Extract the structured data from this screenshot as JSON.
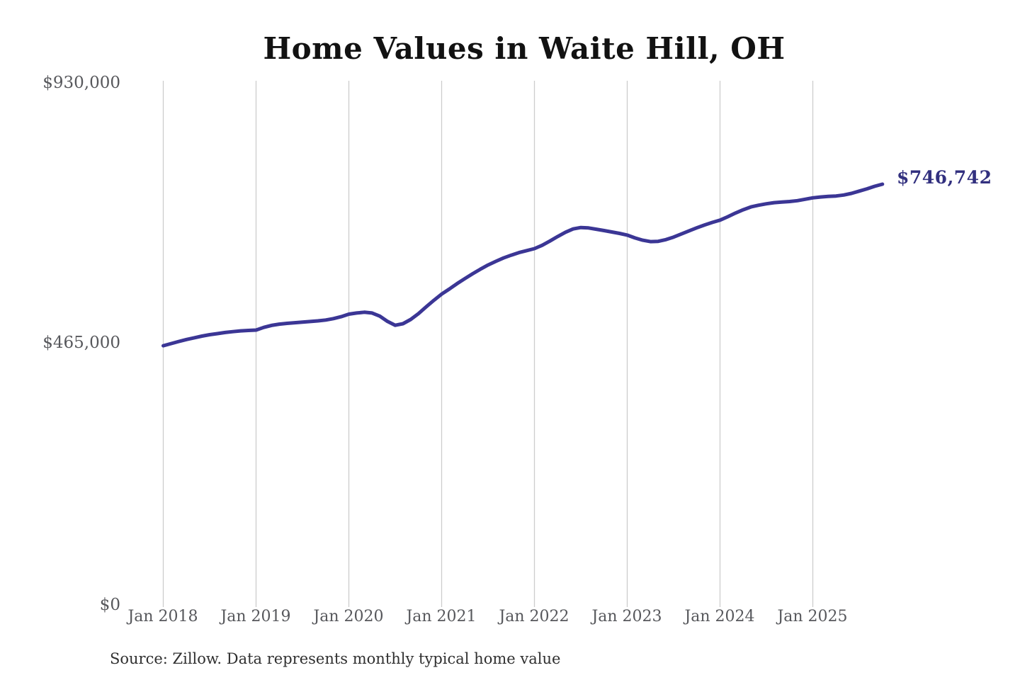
{
  "chart": {
    "title": "Home Values in Waite Hill, OH",
    "latest_value_label": "$746,742",
    "source_note": "Source: Zillow. Data represents monthly typical home value"
  },
  "chart_data": {
    "type": "line",
    "title": "Home Values in Waite Hill, OH",
    "series_name": "Monthly typical home value",
    "x_unit": "month",
    "x_start": "Jan 2018",
    "x_end": "Oct 2025",
    "x_tick_labels": [
      "Jan 2018",
      "Jan 2019",
      "Jan 2020",
      "Jan 2021",
      "Jan 2022",
      "Jan 2023",
      "Jan 2024",
      "Jan 2025"
    ],
    "y_tick_labels": [
      "$0",
      "$465,000",
      "$930,000"
    ],
    "y_tick_values": [
      0,
      465000,
      930000
    ],
    "ylim": [
      0,
      930000
    ],
    "grid": "vertical-only",
    "legend": "none",
    "latest_value": 746742,
    "values": [
      460500,
      464200,
      468000,
      471500,
      474500,
      477500,
      480000,
      482000,
      484000,
      485500,
      486800,
      487600,
      488200,
      493000,
      496500,
      498800,
      500200,
      501300,
      502400,
      503400,
      504500,
      506000,
      508500,
      512000,
      516500,
      518500,
      519800,
      518500,
      513000,
      503500,
      496800,
      499500,
      507000,
      517500,
      529500,
      541000,
      552000,
      561000,
      570500,
      579500,
      588000,
      596000,
      603500,
      610000,
      616000,
      621000,
      625500,
      629000,
      632500,
      638500,
      646000,
      654000,
      661500,
      667500,
      670000,
      669200,
      667000,
      664500,
      662000,
      659500,
      656500,
      651500,
      647500,
      645000,
      645500,
      648500,
      653000,
      658500,
      664000,
      669500,
      674500,
      679000,
      683000,
      689000,
      695500,
      701500,
      706500,
      709500,
      712000,
      714000,
      715000,
      716000,
      717500,
      720000,
      722500,
      724000,
      725000,
      725800,
      727500,
      730500,
      734500,
      738500,
      743000,
      746742
    ],
    "colors": {
      "line": "#3b3695",
      "latest_label": "#32307f",
      "gridline": "#cccccc",
      "tick_text": "#57585c",
      "title_text": "#121212",
      "source_text": "#303030"
    }
  }
}
